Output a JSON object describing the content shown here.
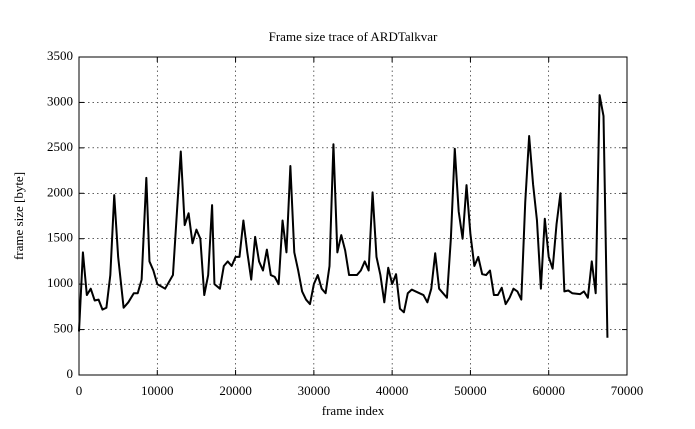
{
  "chart_data": {
    "type": "line",
    "title": "Frame size trace of ARDTalkvar",
    "xlabel": "frame index",
    "ylabel": "frame size [byte]",
    "x": [
      0,
      500,
      1000,
      1500,
      2000,
      2500,
      3000,
      3500,
      4000,
      4500,
      5000,
      5700,
      6300,
      7000,
      7500,
      8000,
      8600,
      9000,
      9500,
      10000,
      11000,
      12000,
      13000,
      13500,
      14000,
      14500,
      15000,
      15500,
      16000,
      16500,
      17000,
      17300,
      18000,
      18500,
      19000,
      19500,
      20000,
      20500,
      21000,
      21500,
      22000,
      22500,
      23000,
      23500,
      24000,
      24500,
      25000,
      25500,
      26000,
      26500,
      27000,
      27500,
      28000,
      28500,
      29000,
      29500,
      30000,
      30500,
      31000,
      31500,
      32000,
      32500,
      33000,
      33500,
      34000,
      34500,
      35500,
      36000,
      36500,
      37000,
      37500,
      38000,
      38500,
      39000,
      39500,
      40000,
      40500,
      41000,
      41500,
      42000,
      42500,
      43000,
      44000,
      44500,
      45000,
      45500,
      46000,
      47000,
      47500,
      48000,
      48500,
      49000,
      49500,
      50000,
      50500,
      51000,
      51500,
      52000,
      52500,
      53000,
      53500,
      54000,
      54500,
      55000,
      55500,
      56000,
      56500,
      57000,
      57500,
      58000,
      58500,
      59000,
      59500,
      60000,
      60500,
      61000,
      61500,
      62000,
      62500,
      63000,
      64000,
      64500,
      65000,
      65500,
      66000,
      66500,
      67000,
      67500
    ],
    "series": [
      {
        "name": "frame size",
        "color": "#000000",
        "values": [
          480,
          1350,
          880,
          950,
          820,
          830,
          720,
          740,
          1100,
          1980,
          1300,
          740,
          800,
          900,
          900,
          1050,
          2170,
          1250,
          1150,
          1000,
          950,
          1100,
          2460,
          1650,
          1780,
          1450,
          1600,
          1500,
          880,
          1100,
          1870,
          1000,
          950,
          1200,
          1250,
          1200,
          1300,
          1300,
          1700,
          1350,
          1050,
          1520,
          1250,
          1150,
          1380,
          1100,
          1080,
          1000,
          1700,
          1350,
          2300,
          1350,
          1150,
          920,
          830,
          780,
          1000,
          1100,
          950,
          900,
          1200,
          2540,
          1350,
          1540,
          1370,
          1100,
          1100,
          1150,
          1250,
          1150,
          2010,
          1300,
          1100,
          800,
          1180,
          1000,
          1110,
          730,
          690,
          900,
          940,
          920,
          880,
          800,
          950,
          1340,
          950,
          850,
          1500,
          2490,
          1800,
          1500,
          2090,
          1550,
          1200,
          1300,
          1110,
          1100,
          1150,
          880,
          880,
          960,
          780,
          850,
          950,
          920,
          830,
          1900,
          2630,
          2100,
          1700,
          950,
          1720,
          1300,
          1170,
          1660,
          2000,
          920,
          930,
          900,
          890,
          920,
          850,
          1250,
          900,
          3080,
          2850,
          410
        ]
      }
    ],
    "xlim": [
      0,
      70000
    ],
    "xticks": [
      0,
      10000,
      20000,
      30000,
      40000,
      50000,
      60000,
      70000
    ],
    "ylim": [
      0,
      3500
    ],
    "yticks": [
      0,
      500,
      1000,
      1500,
      2000,
      2500,
      3000,
      3500
    ],
    "grid": true
  }
}
